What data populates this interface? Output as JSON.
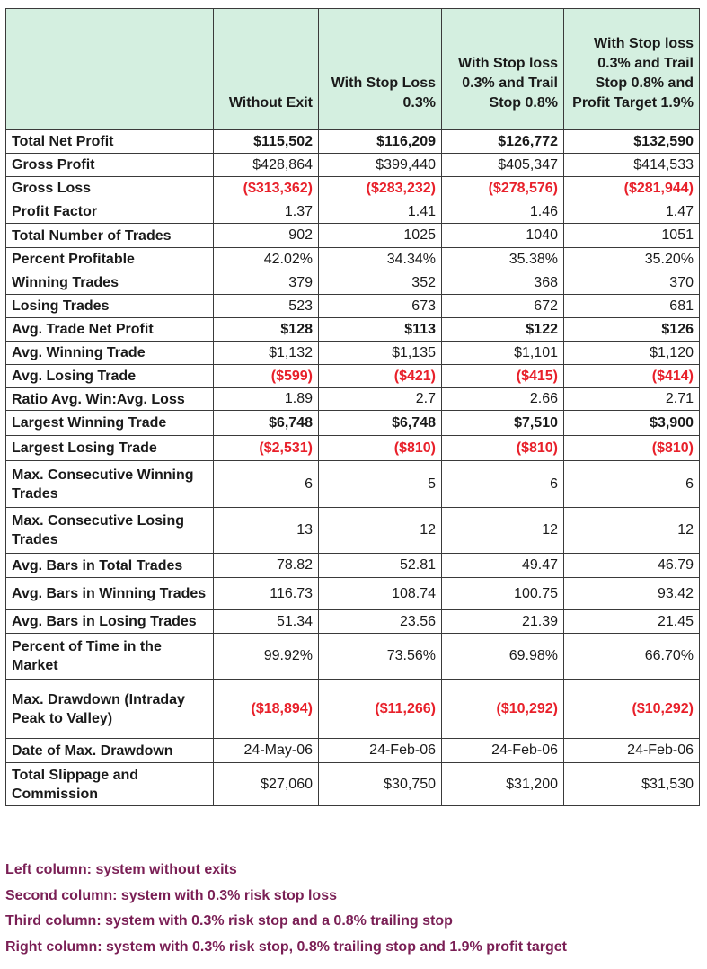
{
  "headers": [
    "Without Exit",
    "With Stop Loss 0.3%",
    "With Stop loss 0.3% and Trail Stop 0.8%",
    "With Stop loss 0.3% and Trail Stop 0.8% and Profit Target 1.9%"
  ],
  "rows": [
    {
      "label": "Total Net Profit",
      "style": "bold",
      "values": [
        "$115,502",
        "$116,209",
        "$126,772",
        "$132,590"
      ]
    },
    {
      "label": "Gross Profit",
      "style": "normal",
      "values": [
        "$428,864",
        "$399,440",
        "$405,347",
        "$414,533"
      ]
    },
    {
      "label": "Gross Loss",
      "style": "red",
      "values": [
        "($313,362)",
        "($283,232)",
        "($278,576)",
        "($281,944)"
      ]
    },
    {
      "label": "Profit Factor",
      "style": "normal",
      "values": [
        "1.37",
        "1.41",
        "1.46",
        "1.47"
      ]
    },
    {
      "label": "Total Number of Trades",
      "style": "normal",
      "values": [
        "902",
        "1025",
        "1040",
        "1051"
      ]
    },
    {
      "label": "Percent Profitable",
      "style": "normal",
      "values": [
        "42.02%",
        "34.34%",
        "35.38%",
        "35.20%"
      ]
    },
    {
      "label": "Winning Trades",
      "style": "normal",
      "values": [
        "379",
        "352",
        "368",
        "370"
      ]
    },
    {
      "label": "Losing Trades",
      "style": "normal",
      "values": [
        "523",
        "673",
        "672",
        "681"
      ]
    },
    {
      "label": "Avg. Trade Net Profit",
      "style": "bold",
      "values": [
        "$128",
        "$113",
        "$122",
        "$126"
      ]
    },
    {
      "label": "Avg. Winning Trade",
      "style": "normal",
      "values": [
        "$1,132",
        "$1,135",
        "$1,101",
        "$1,120"
      ]
    },
    {
      "label": "Avg. Losing Trade",
      "style": "red",
      "values": [
        "($599)",
        "($421)",
        "($415)",
        "($414)"
      ]
    },
    {
      "label": "Ratio Avg. Win:Avg. Loss",
      "style": "normal",
      "values": [
        "1.89",
        "2.7",
        "2.66",
        "2.71"
      ]
    },
    {
      "label": "Largest Winning Trade",
      "style": "bold",
      "values": [
        "$6,748",
        "$6,748",
        "$7,510",
        "$3,900"
      ]
    },
    {
      "label": "Largest Losing Trade",
      "style": "red",
      "values": [
        "($2,531)",
        "($810)",
        "($810)",
        "($810)"
      ]
    },
    {
      "label": "Max. Consecutive Winning Trades",
      "style": "normal",
      "values": [
        "6",
        "5",
        "6",
        "6"
      ]
    },
    {
      "label": "Max. Consecutive Losing Trades",
      "style": "normal",
      "values": [
        "13",
        "12",
        "12",
        "12"
      ]
    },
    {
      "label": "Avg. Bars in Total Trades",
      "style": "normal",
      "values": [
        "78.82",
        "52.81",
        "49.47",
        "46.79"
      ]
    },
    {
      "label": "Avg. Bars in Winning Trades",
      "style": "normal",
      "values": [
        "116.73",
        "108.74",
        "100.75",
        "93.42"
      ]
    },
    {
      "label": "Avg. Bars in Losing Trades",
      "style": "normal",
      "values": [
        "51.34",
        "23.56",
        "21.39",
        "21.45"
      ]
    },
    {
      "label": "Percent of Time in the Market",
      "style": "normal",
      "values": [
        "99.92%",
        "73.56%",
        "69.98%",
        "66.70%"
      ]
    },
    {
      "label": "Max. Drawdown (Intraday Peak to Valley)",
      "style": "red",
      "values": [
        "($18,894)",
        "($11,266)",
        "($10,292)",
        "($10,292)"
      ]
    },
    {
      "label": "Date of Max. Drawdown",
      "style": "normal",
      "values": [
        "24-May-06",
        "24-Feb-06",
        "24-Feb-06",
        "24-Feb-06"
      ]
    },
    {
      "label": "Total Slippage and Commission",
      "style": "normal",
      "values": [
        "$27,060",
        "$30,750",
        "$31,200",
        "$31,530"
      ]
    }
  ],
  "notes": [
    "Left column: system without exits",
    "Second column: system with 0.3% risk stop loss",
    "Third column: system with 0.3% risk stop and a 0.8% trailing stop",
    "Right column: system with 0.3% risk stop, 0.8% trailing stop and 1.9% profit target"
  ],
  "colors": {
    "header_bg": "#d4efe0",
    "loss_red": "#e8202a",
    "note_text": "#7a1f55",
    "border": "#3a3a3a"
  }
}
